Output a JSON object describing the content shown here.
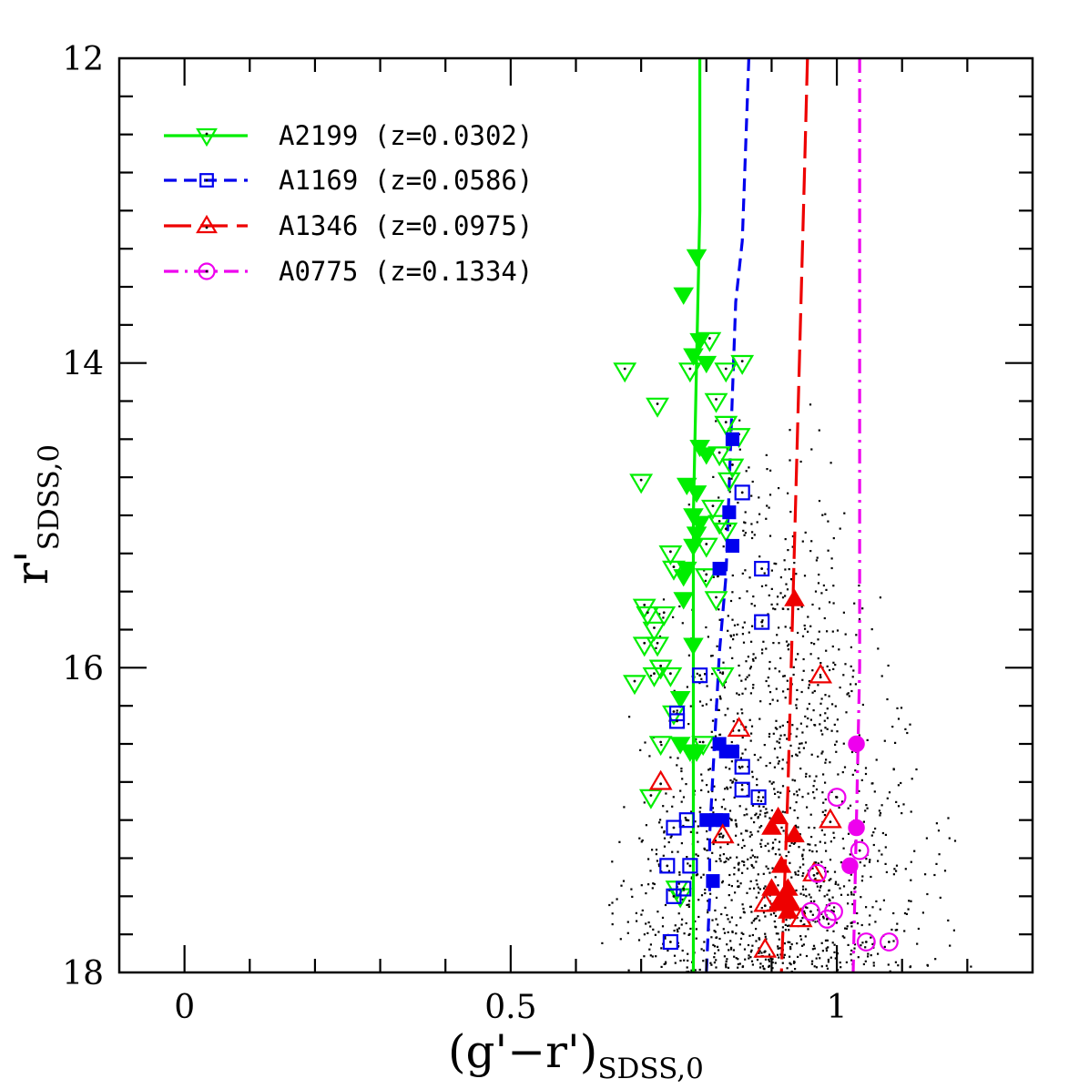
{
  "chart_data": {
    "type": "scatter",
    "xlabel": "(g'−r')",
    "xlabel_sub": "SDSS,0",
    "ylabel": "r'",
    "ylabel_sub": "SDSS,0",
    "xlim": [
      -0.1,
      1.3
    ],
    "ylim": [
      18,
      12
    ],
    "y_inverted": true,
    "x_ticks": [
      0,
      0.5,
      1
    ],
    "x_tick_labels": [
      "0",
      "0.5",
      "1"
    ],
    "y_ticks": [
      12,
      14,
      16,
      18
    ],
    "y_tick_labels": [
      "12",
      "14",
      "16",
      "18"
    ],
    "grid": false,
    "legend_position": "top-left",
    "series": [
      {
        "name": "A2199 (z=0.0302)",
        "color": "#00ee00",
        "marker": "triangle-down",
        "line_style": "solid",
        "relation": [
          [
            0.79,
            12.0
          ],
          [
            0.79,
            13.0
          ],
          [
            0.785,
            14.0
          ],
          [
            0.78,
            15.0
          ],
          [
            0.78,
            16.0
          ],
          [
            0.78,
            17.0
          ],
          [
            0.78,
            18.0
          ]
        ],
        "filled": [
          [
            0.785,
            13.3
          ],
          [
            0.765,
            13.55
          ],
          [
            0.79,
            13.85
          ],
          [
            0.78,
            13.95
          ],
          [
            0.8,
            14.0
          ],
          [
            0.79,
            14.55
          ],
          [
            0.8,
            14.6
          ],
          [
            0.77,
            14.8
          ],
          [
            0.785,
            14.85
          ],
          [
            0.78,
            15.0
          ],
          [
            0.79,
            15.05
          ],
          [
            0.785,
            15.12
          ],
          [
            0.78,
            15.2
          ],
          [
            0.77,
            15.35
          ],
          [
            0.765,
            15.4
          ],
          [
            0.765,
            15.55
          ],
          [
            0.78,
            15.85
          ],
          [
            0.76,
            16.2
          ],
          [
            0.785,
            16.55
          ],
          [
            0.775,
            16.55
          ],
          [
            0.76,
            16.5
          ]
        ],
        "open": [
          [
            0.675,
            14.05
          ],
          [
            0.725,
            14.28
          ],
          [
            0.775,
            14.05
          ],
          [
            0.805,
            13.85
          ],
          [
            0.83,
            14.05
          ],
          [
            0.855,
            14.0
          ],
          [
            0.815,
            14.25
          ],
          [
            0.83,
            14.4
          ],
          [
            0.85,
            14.48
          ],
          [
            0.82,
            14.6
          ],
          [
            0.84,
            14.68
          ],
          [
            0.7,
            14.78
          ],
          [
            0.835,
            14.77
          ],
          [
            0.81,
            14.95
          ],
          [
            0.82,
            15.05
          ],
          [
            0.83,
            15.1
          ],
          [
            0.8,
            15.2
          ],
          [
            0.745,
            15.25
          ],
          [
            0.75,
            15.35
          ],
          [
            0.8,
            15.4
          ],
          [
            0.705,
            15.6
          ],
          [
            0.71,
            15.65
          ],
          [
            0.735,
            15.65
          ],
          [
            0.72,
            15.75
          ],
          [
            0.705,
            15.85
          ],
          [
            0.725,
            15.85
          ],
          [
            0.72,
            16.05
          ],
          [
            0.745,
            16.05
          ],
          [
            0.73,
            16.0
          ],
          [
            0.69,
            16.1
          ],
          [
            0.815,
            15.55
          ],
          [
            0.825,
            16.05
          ],
          [
            0.75,
            16.3
          ],
          [
            0.73,
            16.5
          ],
          [
            0.795,
            16.5
          ],
          [
            0.715,
            16.85
          ],
          [
            0.755,
            17.45
          ],
          [
            0.76,
            17.5
          ]
        ],
        "values_note": ""
      },
      {
        "name": "A1169 (z=0.0586)",
        "color": "#0000ee",
        "marker": "square",
        "line_style": "dashed",
        "relation": [
          [
            0.865,
            12.0
          ],
          [
            0.86,
            12.6
          ],
          [
            0.855,
            13.2
          ],
          [
            0.845,
            13.6
          ],
          [
            0.84,
            14.2
          ],
          [
            0.835,
            14.8
          ],
          [
            0.83,
            15.4
          ],
          [
            0.82,
            15.9
          ],
          [
            0.815,
            16.3
          ],
          [
            0.81,
            16.7
          ],
          [
            0.805,
            17.1
          ],
          [
            0.805,
            17.5
          ],
          [
            0.8,
            18.0
          ]
        ],
        "filled": [
          [
            0.84,
            14.5
          ],
          [
            0.835,
            14.98
          ],
          [
            0.84,
            15.2
          ],
          [
            0.82,
            15.35
          ],
          [
            0.82,
            16.5
          ],
          [
            0.83,
            16.55
          ],
          [
            0.84,
            16.55
          ],
          [
            0.8,
            17.0
          ],
          [
            0.815,
            17.0
          ],
          [
            0.825,
            17.0
          ],
          [
            0.81,
            17.4
          ]
        ],
        "open": [
          [
            0.855,
            14.85
          ],
          [
            0.885,
            15.35
          ],
          [
            0.885,
            15.7
          ],
          [
            0.79,
            16.05
          ],
          [
            0.755,
            16.3
          ],
          [
            0.755,
            16.35
          ],
          [
            0.855,
            16.65
          ],
          [
            0.855,
            16.8
          ],
          [
            0.88,
            16.85
          ],
          [
            0.75,
            17.05
          ],
          [
            0.77,
            17.0
          ],
          [
            0.74,
            17.3
          ],
          [
            0.775,
            17.3
          ],
          [
            0.765,
            17.45
          ],
          [
            0.75,
            17.5
          ],
          [
            0.745,
            17.8
          ]
        ],
        "values_note": ""
      },
      {
        "name": "A1346 (z=0.0975)",
        "color": "#ee0000",
        "marker": "triangle-up",
        "line_style": "long-dashed",
        "relation": [
          [
            0.955,
            12.0
          ],
          [
            0.95,
            12.8
          ],
          [
            0.945,
            13.6
          ],
          [
            0.94,
            14.4
          ],
          [
            0.935,
            15.2
          ],
          [
            0.93,
            16.0
          ],
          [
            0.925,
            16.8
          ],
          [
            0.92,
            17.4
          ],
          [
            0.915,
            18.0
          ]
        ],
        "filled": [
          [
            0.935,
            15.55
          ],
          [
            0.91,
            16.98
          ],
          [
            0.9,
            17.05
          ],
          [
            0.935,
            17.1
          ],
          [
            0.915,
            17.3
          ],
          [
            0.9,
            17.45
          ],
          [
            0.925,
            17.45
          ],
          [
            0.92,
            17.5
          ],
          [
            0.93,
            17.55
          ],
          [
            0.91,
            17.55
          ],
          [
            0.925,
            17.6
          ]
        ],
        "open": [
          [
            0.975,
            16.05
          ],
          [
            0.85,
            16.4
          ],
          [
            0.73,
            16.75
          ],
          [
            0.99,
            17.0
          ],
          [
            0.825,
            17.1
          ],
          [
            0.965,
            17.35
          ],
          [
            0.89,
            17.55
          ],
          [
            0.945,
            17.65
          ],
          [
            0.89,
            17.85
          ]
        ],
        "values_note": ""
      },
      {
        "name": "A0775 (z=0.1334)",
        "color": "#ee00ee",
        "marker": "circle",
        "line_style": "dash-dot",
        "relation": [
          [
            1.035,
            12.0
          ],
          [
            1.035,
            13.0
          ],
          [
            1.035,
            14.0
          ],
          [
            1.035,
            15.0
          ],
          [
            1.035,
            16.0
          ],
          [
            1.03,
            17.0
          ],
          [
            1.025,
            18.0
          ]
        ],
        "filled": [
          [
            1.03,
            16.5
          ],
          [
            1.03,
            17.05
          ],
          [
            1.02,
            17.3
          ]
        ],
        "open": [
          [
            1.0,
            16.85
          ],
          [
            1.035,
            17.2
          ],
          [
            0.97,
            17.35
          ],
          [
            0.96,
            17.6
          ],
          [
            0.995,
            17.6
          ],
          [
            0.985,
            17.65
          ],
          [
            1.045,
            17.8
          ],
          [
            1.08,
            17.8
          ]
        ],
        "values_note": ""
      }
    ],
    "background_points": {
      "name": "",
      "color": "#000000",
      "count": 1500,
      "x_range": [
        0.64,
        1.3
      ],
      "y_range": [
        14.0,
        18.0
      ],
      "x_center": 0.9,
      "note": ""
    }
  },
  "legend": {
    "entries": [
      {
        "label": "A2199 (z=0.0302)"
      },
      {
        "label": "A1169 (z=0.0586)"
      },
      {
        "label": "A1346 (z=0.0975)"
      },
      {
        "label": "A0775 (z=0.1334)"
      }
    ]
  }
}
